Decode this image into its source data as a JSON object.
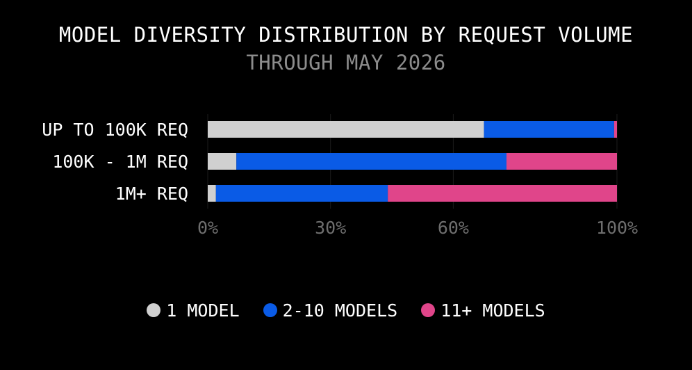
{
  "chart_data": {
    "type": "bar",
    "orientation": "horizontal",
    "stacked": true,
    "title": "MODEL DIVERSITY DISTRIBUTION BY REQUEST VOLUME",
    "subtitle": "THROUGH MAY 2026",
    "categories": [
      "UP TO 100K REQ",
      "100K - 1M REQ",
      "1M+ REQ"
    ],
    "series": [
      {
        "name": "1 MODEL",
        "color": "#d0d0d0",
        "values": [
          67.5,
          7,
          2
        ]
      },
      {
        "name": "2-10 MODELS",
        "color": "#0a5be6",
        "values": [
          31.8,
          66,
          42
        ]
      },
      {
        "name": "11+ MODELS",
        "color": "#e0458a",
        "values": [
          0.7,
          27,
          56
        ]
      }
    ],
    "xlim": [
      0,
      100
    ],
    "xticks": [
      0,
      30,
      60,
      100
    ],
    "xtick_labels": [
      "0%",
      "30%",
      "60%",
      "100%"
    ],
    "grid": true,
    "legend": "bottom"
  }
}
